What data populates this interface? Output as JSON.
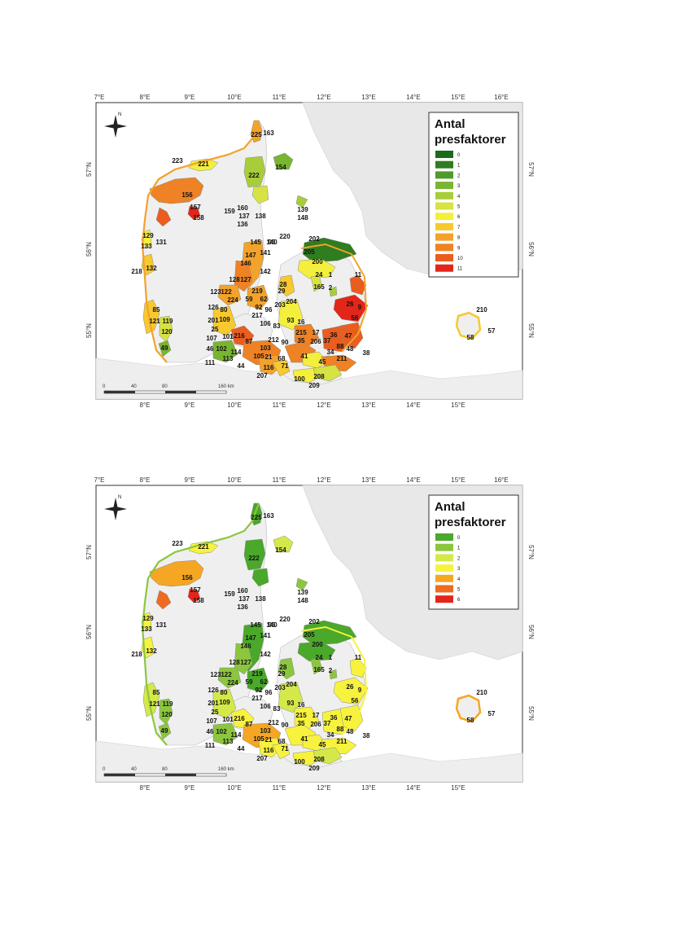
{
  "maps": [
    {
      "legend_title_line1": "Antal",
      "legend_title_line2": "presfaktorer",
      "legend_items": [
        {
          "label": "0",
          "color": "#1a6b1a"
        },
        {
          "label": "1",
          "color": "#2e7d1f"
        },
        {
          "label": "2",
          "color": "#4f9a2a"
        },
        {
          "label": "3",
          "color": "#79b531"
        },
        {
          "label": "4",
          "color": "#a8cd3a"
        },
        {
          "label": "5",
          "color": "#d6e342"
        },
        {
          "label": "6",
          "color": "#f4ee3d"
        },
        {
          "label": "7",
          "color": "#f7c92f"
        },
        {
          "label": "8",
          "color": "#f3a22a"
        },
        {
          "label": "9",
          "color": "#ee8224"
        },
        {
          "label": "10",
          "color": "#ea5d1e"
        },
        {
          "label": "11",
          "color": "#e3261a"
        }
      ]
    },
    {
      "legend_title_line1": "Antal",
      "legend_title_line2": "presfaktorer",
      "legend_items": [
        {
          "label": "0",
          "color": "#4aa82a"
        },
        {
          "label": "1",
          "color": "#8cc63f"
        },
        {
          "label": "2",
          "color": "#d4e84a"
        },
        {
          "label": "3",
          "color": "#f7f23d"
        },
        {
          "label": "4",
          "color": "#f5a623"
        },
        {
          "label": "5",
          "color": "#ee6b1f"
        },
        {
          "label": "6",
          "color": "#e3261a"
        }
      ]
    }
  ],
  "lon_ticks": [
    "7°E",
    "8°E",
    "9°E",
    "10°E",
    "11°E",
    "12°E",
    "13°E",
    "14°E",
    "15°E",
    "16°E"
  ],
  "lat_ticks": [
    "57°N",
    "56°N",
    "55°N"
  ],
  "scale_labels": [
    "0",
    "40",
    "80",
    "160 km"
  ],
  "area_labels": [
    "225",
    "163",
    "223",
    "221",
    "154",
    "222",
    "156",
    "157",
    "158",
    "159",
    "160",
    "137",
    "138",
    "136",
    "139",
    "148",
    "129",
    "133",
    "131",
    "218",
    "132",
    "202",
    "205",
    "200",
    "220",
    "145",
    "140",
    "147",
    "141",
    "146",
    "142",
    "24",
    "1",
    "165",
    "2",
    "11",
    "128",
    "127",
    "219",
    "28",
    "123",
    "122",
    "224",
    "59",
    "62",
    "29",
    "204",
    "126",
    "80",
    "92",
    "96",
    "203",
    "26",
    "201",
    "109",
    "217",
    "93",
    "16",
    "25",
    "106",
    "83",
    "85",
    "121",
    "119",
    "120",
    "107",
    "101",
    "216",
    "87",
    "212",
    "90",
    "215",
    "17",
    "35",
    "206",
    "37",
    "36",
    "47",
    "46",
    "102",
    "103",
    "88",
    "48",
    "49",
    "111",
    "113",
    "114",
    "105",
    "21",
    "68",
    "41",
    "34",
    "45",
    "38",
    "211",
    "44",
    "116",
    "71",
    "207",
    "100",
    "208",
    "209",
    "210",
    "57",
    "58",
    "56",
    "9",
    "96",
    "140"
  ]
}
